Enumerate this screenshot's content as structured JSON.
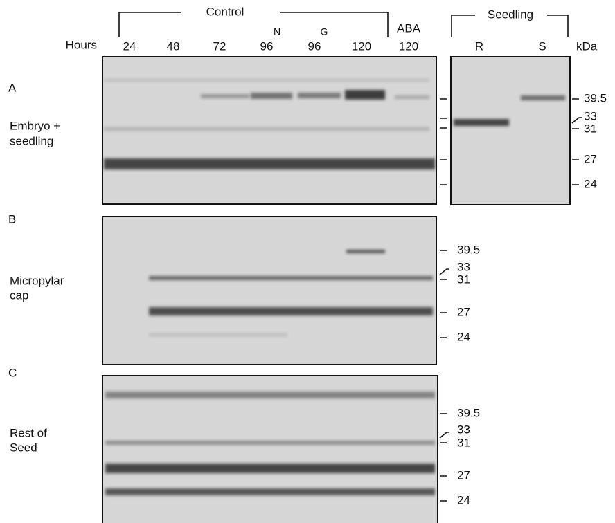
{
  "header": {
    "control": "Control",
    "seedling": "Seedling",
    "hours": "Hours",
    "kda": "kDa",
    "aba": "ABA",
    "lanes": [
      "24",
      "48",
      "72",
      "96",
      "96",
      "120",
      "120"
    ],
    "superscripts": [
      "N",
      "G"
    ],
    "seedling_lanes": [
      "R",
      "S"
    ]
  },
  "panels": [
    {
      "letter": "A",
      "label": [
        "Embryo +",
        "seedling"
      ],
      "markers": [
        "39.5",
        "33",
        "31",
        "27",
        "24"
      ]
    },
    {
      "letter": "B",
      "label": [
        "Micropylar",
        "cap"
      ],
      "markers": [
        "39.5",
        "33",
        "31",
        "27",
        "24"
      ]
    },
    {
      "letter": "C",
      "label": [
        "Rest of",
        "Seed"
      ],
      "markers": [
        "39.5",
        "33",
        "31",
        "27",
        "24"
      ]
    }
  ]
}
